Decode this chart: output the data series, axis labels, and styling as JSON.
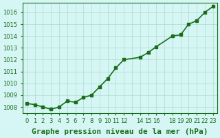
{
  "x_values": [
    0,
    1,
    2,
    3,
    4,
    5,
    6,
    7,
    8,
    9,
    10,
    11,
    12,
    14,
    15,
    16,
    18,
    19,
    20,
    21,
    22,
    23
  ],
  "y_values": [
    1008.3,
    1008.2,
    1008.0,
    1007.8,
    1008.0,
    1008.5,
    1008.4,
    1008.8,
    1009.0,
    1009.7,
    1010.4,
    1011.3,
    1012.0,
    1012.2,
    1012.6,
    1013.1,
    1014.0,
    1014.1,
    1015.0,
    1015.3,
    1016.0,
    1016.5
  ],
  "line_color": "#1a6e1a",
  "marker": "s",
  "marker_size": 3,
  "background_color": "#d6f5f5",
  "grid_color": "#aaddcc",
  "xlabel": "Graphe pression niveau de la mer (hPa)",
  "xlabel_fontsize": 8,
  "tick_label_color": "#1a6e1a",
  "ylabel_ticks": [
    1008,
    1009,
    1010,
    1011,
    1012,
    1013,
    1014,
    1015,
    1016
  ],
  "xlim": [
    -0.5,
    23.5
  ],
  "ylim": [
    1007.5,
    1016.8
  ],
  "xtick_labels": [
    "0",
    "1",
    "2",
    "3",
    "4",
    "5",
    "6",
    "7",
    "8",
    "9",
    "10",
    "11",
    "12",
    "",
    "14",
    "15",
    "16",
    "",
    "18",
    "19",
    "20",
    "21",
    "22",
    "23"
  ],
  "line_width": 1.2
}
